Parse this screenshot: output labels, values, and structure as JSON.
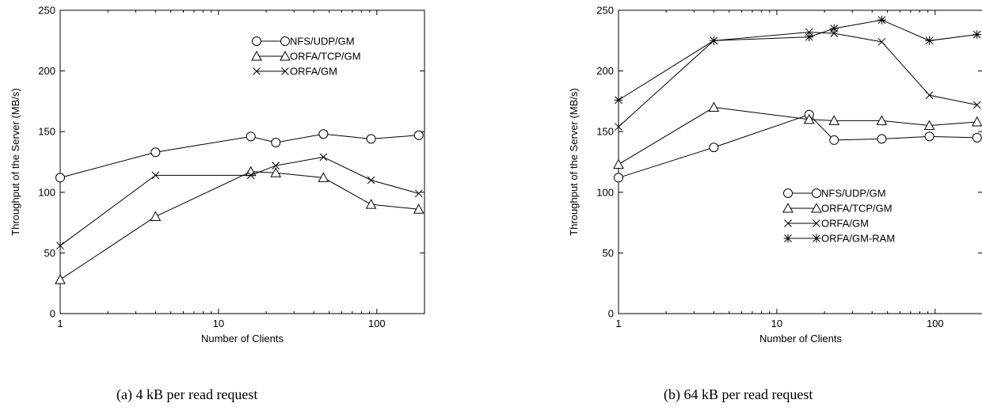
{
  "chart_data": [
    {
      "type": "line",
      "caption": "(a) 4 kB per read request",
      "xlabel": "Number of Clients",
      "ylabel": "Throughput of the Server (MB/s)",
      "xscale": "log",
      "xlim": [
        1,
        200
      ],
      "ylim": [
        0,
        250
      ],
      "xticks": [
        1,
        10,
        100
      ],
      "xtick_labels": [
        "1",
        "10",
        "100"
      ],
      "yticks": [
        0,
        50,
        100,
        150,
        200,
        250
      ],
      "ytick_labels": [
        "0",
        "50",
        "100",
        "150",
        "200",
        "250"
      ],
      "grid": false,
      "legend_position": "top-right",
      "series": [
        {
          "name": "NFS/UDP/GM",
          "marker": "circle",
          "x": [
            1,
            4,
            16,
            23,
            46,
            92,
            184
          ],
          "y": [
            112,
            133,
            146,
            141,
            148,
            144,
            147
          ]
        },
        {
          "name": "ORFA/TCP/GM",
          "marker": "triangle",
          "x": [
            1,
            4,
            16,
            23,
            46,
            92,
            184
          ],
          "y": [
            28,
            80,
            117,
            116,
            112,
            90,
            86
          ]
        },
        {
          "name": "ORFA/GM",
          "marker": "x",
          "x": [
            1,
            4,
            16,
            23,
            46,
            92,
            184
          ],
          "y": [
            56,
            114,
            114,
            122,
            129,
            110,
            99
          ]
        }
      ]
    },
    {
      "type": "line",
      "caption": "(b) 64 kB per read request",
      "xlabel": "Number of Clients",
      "ylabel": "Throughput of the Server (MB/s)",
      "xscale": "log",
      "xlim": [
        1,
        200
      ],
      "ylim": [
        0,
        250
      ],
      "xticks": [
        1,
        10,
        100
      ],
      "xtick_labels": [
        "1",
        "10",
        "100"
      ],
      "yticks": [
        0,
        50,
        100,
        150,
        200,
        250
      ],
      "ytick_labels": [
        "0",
        "50",
        "100",
        "150",
        "200",
        "250"
      ],
      "grid": false,
      "legend_position": "center-right",
      "series": [
        {
          "name": "NFS/UDP/GM",
          "marker": "circle",
          "x": [
            1,
            4,
            16,
            23,
            46,
            92,
            184
          ],
          "y": [
            112,
            137,
            164,
            143,
            144,
            146,
            145
          ]
        },
        {
          "name": "ORFA/TCP/GM",
          "marker": "triangle",
          "x": [
            1,
            4,
            16,
            23,
            46,
            92,
            184
          ],
          "y": [
            123,
            170,
            160,
            159,
            159,
            155,
            158
          ]
        },
        {
          "name": "ORFA/GM",
          "marker": "x",
          "x": [
            1,
            4,
            16,
            23,
            46,
            92,
            184
          ],
          "y": [
            154,
            225,
            232,
            231,
            224,
            180,
            172
          ]
        },
        {
          "name": "ORFA/GM-RAM",
          "marker": "star",
          "x": [
            1,
            4,
            16,
            23,
            46,
            92,
            184
          ],
          "y": [
            176,
            225,
            228,
            235,
            242,
            225,
            230
          ]
        }
      ]
    }
  ]
}
